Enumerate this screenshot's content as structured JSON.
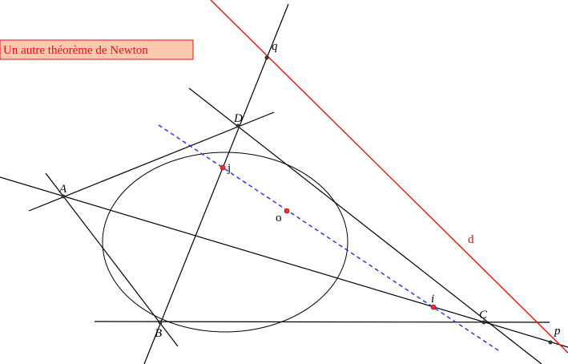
{
  "title": "Un autre théorème de Newton",
  "points": [
    {
      "label": "A"
    },
    {
      "label": "B"
    },
    {
      "label": "C"
    },
    {
      "label": "D"
    },
    {
      "label": "q"
    },
    {
      "label": "p"
    },
    {
      "label": "i"
    },
    {
      "label": "j"
    },
    {
      "label": "o"
    }
  ],
  "lines": [
    {
      "label": "d"
    }
  ]
}
